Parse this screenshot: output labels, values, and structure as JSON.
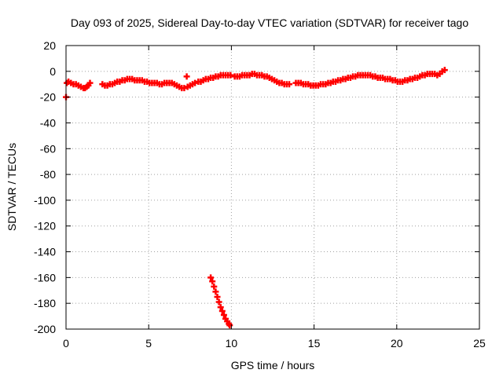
{
  "chart_data": {
    "type": "scatter",
    "title": "Day 093 of 2025, Sidereal Day-to-day VTEC variation (SDTVAR) for receiver tago",
    "xlabel": "GPS time / hours",
    "ylabel": "SDTVAR / TECUs",
    "xlim": [
      0,
      25
    ],
    "ylim": [
      -200,
      20
    ],
    "xticks": [
      0,
      5,
      10,
      15,
      20,
      25
    ],
    "yticks": [
      20,
      0,
      -20,
      -40,
      -60,
      -80,
      -100,
      -120,
      -140,
      -160,
      -180,
      -200
    ],
    "grid": true,
    "marker": "plus",
    "color": "#ff0000",
    "series": [
      {
        "points": [
          [
            0.0,
            -20
          ],
          [
            0.05,
            -9
          ],
          [
            0.15,
            -8
          ],
          [
            0.3,
            -9
          ],
          [
            0.45,
            -10
          ],
          [
            0.6,
            -10
          ],
          [
            0.75,
            -11
          ],
          [
            0.9,
            -12
          ],
          [
            1.05,
            -13
          ],
          [
            1.15,
            -13
          ],
          [
            1.25,
            -12
          ],
          [
            1.35,
            -11
          ],
          [
            1.45,
            -9
          ],
          [
            2.2,
            -10
          ],
          [
            2.35,
            -11
          ],
          [
            2.5,
            -11
          ],
          [
            2.65,
            -10
          ],
          [
            2.8,
            -10
          ],
          [
            2.95,
            -9
          ],
          [
            3.1,
            -8
          ],
          [
            3.25,
            -8
          ],
          [
            3.4,
            -7
          ],
          [
            3.55,
            -7
          ],
          [
            3.7,
            -6
          ],
          [
            3.85,
            -6
          ],
          [
            4.0,
            -6
          ],
          [
            4.15,
            -7
          ],
          [
            4.3,
            -7
          ],
          [
            4.45,
            -7
          ],
          [
            4.6,
            -7
          ],
          [
            4.75,
            -8
          ],
          [
            4.9,
            -8
          ],
          [
            5.05,
            -9
          ],
          [
            5.2,
            -9
          ],
          [
            5.35,
            -9
          ],
          [
            5.5,
            -9
          ],
          [
            5.65,
            -10
          ],
          [
            5.8,
            -10
          ],
          [
            5.95,
            -9
          ],
          [
            6.1,
            -9
          ],
          [
            6.25,
            -9
          ],
          [
            6.4,
            -9
          ],
          [
            6.55,
            -10
          ],
          [
            6.7,
            -11
          ],
          [
            6.85,
            -12
          ],
          [
            7.0,
            -13
          ],
          [
            7.15,
            -13
          ],
          [
            7.3,
            -4
          ],
          [
            7.35,
            -12
          ],
          [
            7.5,
            -11
          ],
          [
            7.65,
            -10
          ],
          [
            7.8,
            -9
          ],
          [
            8.0,
            -8
          ],
          [
            8.15,
            -8
          ],
          [
            8.3,
            -7
          ],
          [
            8.45,
            -6
          ],
          [
            8.6,
            -6
          ],
          [
            8.75,
            -5
          ],
          [
            8.9,
            -5
          ],
          [
            9.05,
            -4
          ],
          [
            9.2,
            -4
          ],
          [
            9.35,
            -3
          ],
          [
            9.5,
            -3
          ],
          [
            9.65,
            -3
          ],
          [
            9.8,
            -3
          ],
          [
            9.95,
            -3
          ],
          [
            10.2,
            -4
          ],
          [
            10.35,
            -4
          ],
          [
            10.5,
            -4
          ],
          [
            10.65,
            -3
          ],
          [
            10.8,
            -3
          ],
          [
            10.95,
            -3
          ],
          [
            11.1,
            -3
          ],
          [
            11.25,
            -2
          ],
          [
            11.4,
            -2
          ],
          [
            11.55,
            -3
          ],
          [
            11.7,
            -3
          ],
          [
            11.85,
            -3
          ],
          [
            12.0,
            -4
          ],
          [
            12.15,
            -4
          ],
          [
            12.3,
            -5
          ],
          [
            12.45,
            -6
          ],
          [
            12.6,
            -7
          ],
          [
            12.75,
            -8
          ],
          [
            12.9,
            -9
          ],
          [
            13.05,
            -9
          ],
          [
            13.2,
            -10
          ],
          [
            13.35,
            -10
          ],
          [
            13.5,
            -10
          ],
          [
            13.9,
            -9
          ],
          [
            14.05,
            -9
          ],
          [
            14.2,
            -9
          ],
          [
            14.35,
            -10
          ],
          [
            14.5,
            -10
          ],
          [
            14.65,
            -10
          ],
          [
            14.8,
            -11
          ],
          [
            14.95,
            -11
          ],
          [
            15.1,
            -11
          ],
          [
            15.25,
            -11
          ],
          [
            15.4,
            -10
          ],
          [
            15.55,
            -10
          ],
          [
            15.7,
            -10
          ],
          [
            15.85,
            -9
          ],
          [
            16.0,
            -9
          ],
          [
            16.15,
            -8
          ],
          [
            16.3,
            -8
          ],
          [
            16.45,
            -7
          ],
          [
            16.6,
            -7
          ],
          [
            16.75,
            -6
          ],
          [
            16.9,
            -6
          ],
          [
            17.05,
            -5
          ],
          [
            17.2,
            -5
          ],
          [
            17.35,
            -4
          ],
          [
            17.5,
            -4
          ],
          [
            17.65,
            -3
          ],
          [
            17.8,
            -3
          ],
          [
            17.95,
            -3
          ],
          [
            18.1,
            -3
          ],
          [
            18.25,
            -3
          ],
          [
            18.4,
            -3
          ],
          [
            18.55,
            -4
          ],
          [
            18.7,
            -4
          ],
          [
            18.85,
            -5
          ],
          [
            19.0,
            -5
          ],
          [
            19.15,
            -5
          ],
          [
            19.3,
            -6
          ],
          [
            19.45,
            -6
          ],
          [
            19.6,
            -6
          ],
          [
            19.75,
            -7
          ],
          [
            19.9,
            -7
          ],
          [
            20.05,
            -8
          ],
          [
            20.2,
            -8
          ],
          [
            20.35,
            -8
          ],
          [
            20.5,
            -7
          ],
          [
            20.65,
            -7
          ],
          [
            20.8,
            -6
          ],
          [
            20.95,
            -6
          ],
          [
            21.1,
            -5
          ],
          [
            21.25,
            -5
          ],
          [
            21.4,
            -4
          ],
          [
            21.55,
            -3
          ],
          [
            21.7,
            -3
          ],
          [
            21.85,
            -2
          ],
          [
            22.0,
            -2
          ],
          [
            22.15,
            -2
          ],
          [
            22.3,
            -2
          ],
          [
            22.45,
            -3
          ],
          [
            22.6,
            -2
          ],
          [
            22.75,
            0
          ],
          [
            22.9,
            1
          ],
          [
            8.75,
            -160
          ],
          [
            8.85,
            -163
          ],
          [
            8.95,
            -167
          ],
          [
            9.05,
            -171
          ],
          [
            9.15,
            -175
          ],
          [
            9.25,
            -179
          ],
          [
            9.35,
            -183
          ],
          [
            9.45,
            -186
          ],
          [
            9.55,
            -189
          ],
          [
            9.65,
            -192
          ],
          [
            9.75,
            -194
          ],
          [
            9.85,
            -196
          ],
          [
            9.9,
            -197
          ]
        ]
      }
    ]
  }
}
